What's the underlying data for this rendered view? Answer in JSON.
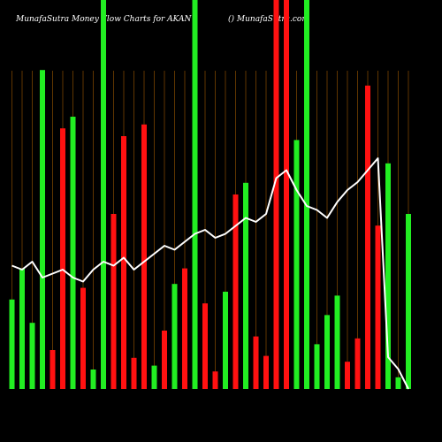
{
  "header": {
    "left": "MunafaSutra  Money Flow  Charts for AKAN",
    "right": "() MunafaSutra.com"
  },
  "colors": {
    "background": "#000000",
    "up": "#22ee22",
    "down": "#ff1111",
    "grid": "#a05a00",
    "price_line": "#ffffff",
    "text": "#ffffff"
  },
  "chart_data": {
    "type": "bar",
    "title": "MunafaSutra  Money Flow  Charts for AKAN",
    "grid": "vertical",
    "ylim": [
      0,
      1
    ],
    "bars": [
      {
        "value": 0.23,
        "dir": "up"
      },
      {
        "value": 0.31,
        "dir": "up"
      },
      {
        "value": 0.17,
        "dir": "up"
      },
      {
        "value": 0.82,
        "dir": "up"
      },
      {
        "value": 0.1,
        "dir": "down"
      },
      {
        "value": 0.67,
        "dir": "down"
      },
      {
        "value": 0.7,
        "dir": "up"
      },
      {
        "value": 0.26,
        "dir": "down"
      },
      {
        "value": 0.05,
        "dir": "up"
      },
      {
        "value": 1.0,
        "dir": "up"
      },
      {
        "value": 0.45,
        "dir": "down"
      },
      {
        "value": 0.65,
        "dir": "down"
      },
      {
        "value": 0.08,
        "dir": "down"
      },
      {
        "value": 0.68,
        "dir": "down"
      },
      {
        "value": 0.06,
        "dir": "up"
      },
      {
        "value": 0.15,
        "dir": "down"
      },
      {
        "value": 0.27,
        "dir": "up"
      },
      {
        "value": 0.31,
        "dir": "down"
      },
      {
        "value": 1.0,
        "dir": "up"
      },
      {
        "value": 0.22,
        "dir": "down"
      },
      {
        "value": 0.045,
        "dir": "down"
      },
      {
        "value": 0.25,
        "dir": "up"
      },
      {
        "value": 0.5,
        "dir": "down"
      },
      {
        "value": 0.53,
        "dir": "up"
      },
      {
        "value": 0.135,
        "dir": "down"
      },
      {
        "value": 0.085,
        "dir": "down"
      },
      {
        "value": 1.0,
        "dir": "down"
      },
      {
        "value": 1.0,
        "dir": "down"
      },
      {
        "value": 0.64,
        "dir": "up"
      },
      {
        "value": 1.0,
        "dir": "up"
      },
      {
        "value": 0.115,
        "dir": "up"
      },
      {
        "value": 0.19,
        "dir": "up"
      },
      {
        "value": 0.24,
        "dir": "up"
      },
      {
        "value": 0.07,
        "dir": "down"
      },
      {
        "value": 0.13,
        "dir": "down"
      },
      {
        "value": 0.78,
        "dir": "down"
      },
      {
        "value": 0.42,
        "dir": "down"
      },
      {
        "value": 0.58,
        "dir": "up"
      },
      {
        "value": 0.03,
        "dir": "up"
      },
      {
        "value": 0.45,
        "dir": "up"
      }
    ],
    "price_line": [
      0.31,
      0.3,
      0.32,
      0.28,
      0.29,
      0.3,
      0.28,
      0.27,
      0.3,
      0.32,
      0.31,
      0.33,
      0.3,
      0.32,
      0.34,
      0.36,
      0.35,
      0.37,
      0.39,
      0.4,
      0.38,
      0.39,
      0.41,
      0.43,
      0.42,
      0.44,
      0.53,
      0.55,
      0.5,
      0.46,
      0.45,
      0.43,
      0.47,
      0.5,
      0.52,
      0.55,
      0.58,
      0.08,
      0.05,
      0.0
    ]
  }
}
